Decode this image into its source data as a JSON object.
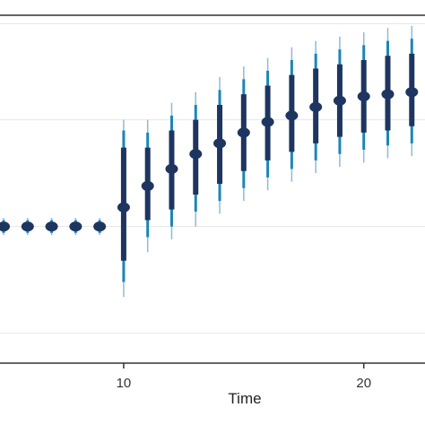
{
  "chart_data": {
    "type": "scatter",
    "title": "",
    "xlabel": "Time",
    "ylabel": "",
    "x_ticks": [
      10,
      20
    ],
    "x_tick_labels": [
      "10",
      "20"
    ],
    "xlim": [
      4.85,
      22.55
    ],
    "ylim": [
      -0.64,
      0.99
    ],
    "y_gridlines": [
      -0.5,
      0.0,
      0.5
    ],
    "grid": "horizontal",
    "legend": "none",
    "colors": {
      "point": "#1e3560",
      "inner_interval": "#1e3560",
      "outer_interval": "#1a86b8",
      "whisker": "#8fbad6",
      "grid": "#e6e6e6",
      "axis": "#333333"
    },
    "x": [
      5,
      6,
      7,
      8,
      9,
      10,
      11,
      12,
      13,
      14,
      15,
      16,
      17,
      18,
      19,
      20,
      21,
      22
    ],
    "estimate": [
      0.0,
      0.0,
      0.0,
      0.0,
      0.0,
      0.09,
      0.19,
      0.27,
      0.34,
      0.39,
      0.44,
      0.49,
      0.52,
      0.56,
      0.59,
      0.61,
      0.62,
      0.63
    ],
    "inner_low": [
      -0.02,
      -0.02,
      -0.02,
      -0.02,
      -0.02,
      -0.16,
      0.03,
      0.08,
      0.15,
      0.2,
      0.26,
      0.31,
      0.35,
      0.39,
      0.42,
      0.44,
      0.45,
      0.47
    ],
    "inner_high": [
      0.02,
      0.02,
      0.02,
      0.02,
      0.02,
      0.37,
      0.37,
      0.45,
      0.5,
      0.57,
      0.62,
      0.66,
      0.71,
      0.74,
      0.76,
      0.78,
      0.8,
      0.81
    ],
    "outer_low": [
      -0.03,
      -0.03,
      -0.03,
      -0.03,
      -0.03,
      -0.26,
      -0.05,
      0.0,
      0.07,
      0.12,
      0.18,
      0.23,
      0.27,
      0.31,
      0.34,
      0.36,
      0.38,
      0.39
    ],
    "outer_high": [
      0.03,
      0.03,
      0.03,
      0.03,
      0.03,
      0.45,
      0.44,
      0.52,
      0.57,
      0.64,
      0.69,
      0.73,
      0.78,
      0.81,
      0.83,
      0.85,
      0.87,
      0.88
    ],
    "whisker_low": [
      -0.04,
      -0.04,
      -0.04,
      -0.04,
      -0.04,
      -0.33,
      -0.12,
      -0.06,
      0.0,
      0.06,
      0.12,
      0.17,
      0.21,
      0.25,
      0.28,
      0.3,
      0.32,
      0.33
    ],
    "whisker_high": [
      0.04,
      0.04,
      0.04,
      0.04,
      0.04,
      0.5,
      0.5,
      0.58,
      0.63,
      0.7,
      0.75,
      0.79,
      0.84,
      0.87,
      0.89,
      0.91,
      0.93,
      0.94
    ]
  }
}
